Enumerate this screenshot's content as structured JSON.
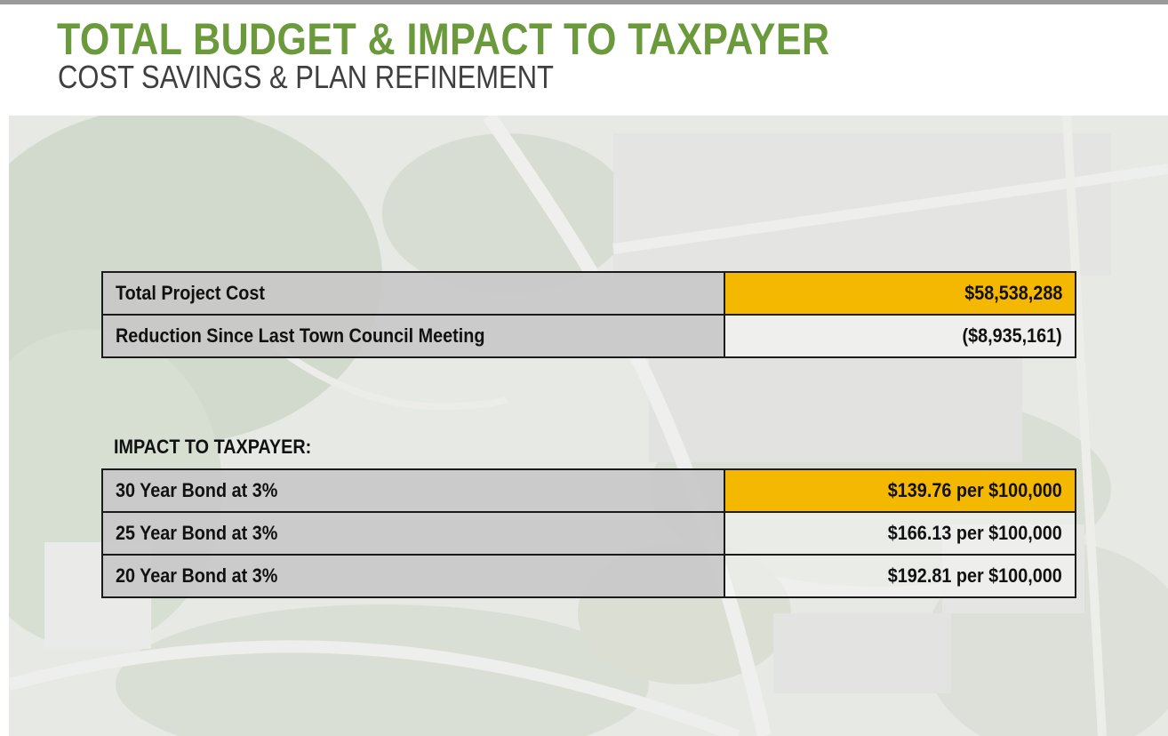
{
  "header": {
    "title": "TOTAL BUDGET & IMPACT TO TAXPAYER",
    "subtitle": "COST SAVINGS & PLAN REFINEMENT"
  },
  "colors": {
    "title_green": "#6b9a3c",
    "highlight_yellow": "#f5b800",
    "label_gray": "#c8c8c8"
  },
  "budget_table": {
    "rows": [
      {
        "label": "Total Project Cost",
        "value": "$58,538,288",
        "highlighted": true
      },
      {
        "label": "Reduction Since Last Town Council Meeting",
        "value": "($8,935,161)",
        "highlighted": false
      }
    ]
  },
  "impact_section": {
    "heading": "IMPACT TO TAXPAYER:",
    "rows": [
      {
        "label": "30 Year Bond at 3%",
        "value": "$139.76 per $100,000",
        "highlighted": true
      },
      {
        "label": "25 Year Bond at 3%",
        "value": "$166.13 per $100,000",
        "highlighted": false
      },
      {
        "label": "20 Year Bond at 3%",
        "value": "$192.81 per $100,000",
        "highlighted": false
      }
    ]
  }
}
